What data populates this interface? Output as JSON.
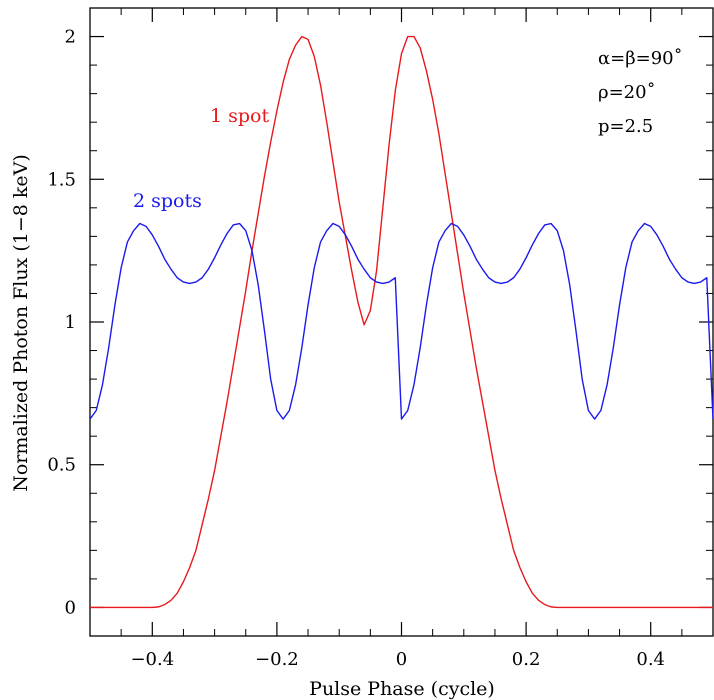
{
  "chart_data": {
    "type": "line",
    "xlabel": "Pulse Phase (cycle)",
    "ylabel": "Normalized Photon Flux (1−8 keV)",
    "xlim": [
      -0.5,
      0.5
    ],
    "ylim": [
      -0.1,
      2.1
    ],
    "x_ticks": [
      -0.4,
      -0.2,
      0,
      0.2,
      0.4
    ],
    "x_tick_labels": [
      "−0.4",
      "−0.2",
      "0",
      "0.2",
      "0.4"
    ],
    "y_ticks": [
      0,
      0.5,
      1,
      1.5,
      2
    ],
    "y_tick_labels": [
      "0",
      "0.5",
      "1",
      "1.5",
      "2"
    ],
    "grid": false,
    "annotations": {
      "line1": "α=β=90˚",
      "line2": "ρ=20˚",
      "line3": "p=2.5"
    },
    "series": [
      {
        "name": "1 spot",
        "color": "#e8191b",
        "x": [
          -0.5,
          -0.48,
          -0.46,
          -0.44,
          -0.42,
          -0.4,
          -0.39,
          -0.38,
          -0.37,
          -0.36,
          -0.35,
          -0.34,
          -0.33,
          -0.32,
          -0.31,
          -0.3,
          -0.29,
          -0.28,
          -0.27,
          -0.26,
          -0.25,
          -0.24,
          -0.23,
          -0.22,
          -0.21,
          -0.2,
          -0.19,
          -0.18,
          -0.17,
          -0.16,
          -0.15,
          -0.14,
          -0.13,
          -0.12,
          -0.11,
          -0.1,
          -0.09,
          -0.08,
          -0.07,
          -0.06,
          -0.05,
          -0.04,
          -0.03,
          -0.02,
          -0.01,
          0,
          0.01,
          0.02,
          0.03,
          0.04,
          0.05,
          0.06,
          0.07,
          0.08,
          0.09,
          0.1,
          0.11,
          0.12,
          0.13,
          0.14,
          0.15,
          0.16,
          0.17,
          0.18,
          0.19,
          0.2,
          0.21,
          0.22,
          0.23,
          0.24,
          0.25,
          0.26,
          0.27,
          0.28,
          0.29,
          0.3,
          0.31,
          0.32,
          0.33,
          0.34,
          0.35,
          0.36,
          0.37,
          0.38,
          0.39,
          0.4,
          0.42,
          0.44,
          0.46,
          0.48,
          0.5
        ],
        "values": [
          0,
          0,
          0,
          0,
          0,
          0,
          0.002,
          0.01,
          0.025,
          0.05,
          0.09,
          0.14,
          0.2,
          0.29,
          0.38,
          0.48,
          0.6,
          0.72,
          0.85,
          0.98,
          1.11,
          1.25,
          1.38,
          1.51,
          1.63,
          1.74,
          1.84,
          1.92,
          1.97,
          2.0,
          1.99,
          1.93,
          1.83,
          1.7,
          1.56,
          1.42,
          1.3,
          1.18,
          1.07,
          0.99,
          1.04,
          1.18,
          1.4,
          1.62,
          1.81,
          1.94,
          2.0,
          2.0,
          1.96,
          1.88,
          1.78,
          1.66,
          1.52,
          1.38,
          1.24,
          1.1,
          0.97,
          0.84,
          0.72,
          0.6,
          0.48,
          0.38,
          0.29,
          0.2,
          0.14,
          0.09,
          0.05,
          0.025,
          0.01,
          0.002,
          0,
          0,
          0,
          0,
          0,
          0,
          0,
          0,
          0,
          0,
          0,
          0,
          0,
          0,
          0,
          0,
          0,
          0,
          0,
          0,
          0
        ]
      },
      {
        "name": "2 spots",
        "color": "#1a1aee",
        "x": [
          -0.5,
          -0.49,
          -0.48,
          -0.47,
          -0.46,
          -0.45,
          -0.44,
          -0.43,
          -0.42,
          -0.41,
          -0.4,
          -0.39,
          -0.38,
          -0.37,
          -0.36,
          -0.35,
          -0.34,
          -0.33,
          -0.32,
          -0.31,
          -0.3,
          -0.29,
          -0.28,
          -0.27,
          -0.26,
          -0.25,
          -0.24,
          -0.23,
          -0.22,
          -0.21,
          -0.2,
          -0.19,
          -0.18,
          -0.17,
          -0.16,
          -0.15,
          -0.14,
          -0.13,
          -0.12,
          -0.11,
          -0.1,
          -0.09,
          -0.08,
          -0.07,
          -0.06,
          -0.05,
          -0.04,
          -0.03,
          -0.02,
          -0.01,
          0,
          0.01,
          0.02,
          0.03,
          0.04,
          0.05,
          0.06,
          0.07,
          0.08,
          0.09,
          0.1,
          0.11,
          0.12,
          0.13,
          0.14,
          0.15,
          0.16,
          0.17,
          0.18,
          0.19,
          0.2,
          0.21,
          0.22,
          0.23,
          0.24,
          0.25,
          0.26,
          0.27,
          0.28,
          0.29,
          0.3,
          0.31,
          0.32,
          0.33,
          0.34,
          0.35,
          0.36,
          0.37,
          0.38,
          0.39,
          0.4,
          0.41,
          0.42,
          0.43,
          0.44,
          0.45,
          0.46,
          0.47,
          0.48,
          0.49,
          0.5
        ],
        "values": [
          0.66,
          0.69,
          0.78,
          0.91,
          1.06,
          1.19,
          1.28,
          1.32,
          1.345,
          1.335,
          1.305,
          1.265,
          1.22,
          1.185,
          1.155,
          1.14,
          1.135,
          1.14,
          1.155,
          1.185,
          1.225,
          1.27,
          1.31,
          1.34,
          1.345,
          1.32,
          1.25,
          1.13,
          0.97,
          0.8,
          0.69,
          0.66,
          0.69,
          0.78,
          0.91,
          1.06,
          1.19,
          1.28,
          1.32,
          1.345,
          1.335,
          1.305,
          1.265,
          1.22,
          1.185,
          1.155,
          1.14,
          1.135,
          1.14,
          1.155,
          0.66,
          0.69,
          0.78,
          0.91,
          1.06,
          1.19,
          1.28,
          1.32,
          1.345,
          1.335,
          1.305,
          1.265,
          1.22,
          1.185,
          1.155,
          1.14,
          1.135,
          1.14,
          1.155,
          1.185,
          1.225,
          1.27,
          1.31,
          1.34,
          1.345,
          1.32,
          1.25,
          1.13,
          0.97,
          0.8,
          0.69,
          0.66,
          0.69,
          0.78,
          0.91,
          1.06,
          1.19,
          1.28,
          1.32,
          1.345,
          1.335,
          1.305,
          1.265,
          1.22,
          1.185,
          1.155,
          1.14,
          1.135,
          1.14,
          1.155,
          0.66
        ]
      }
    ]
  }
}
